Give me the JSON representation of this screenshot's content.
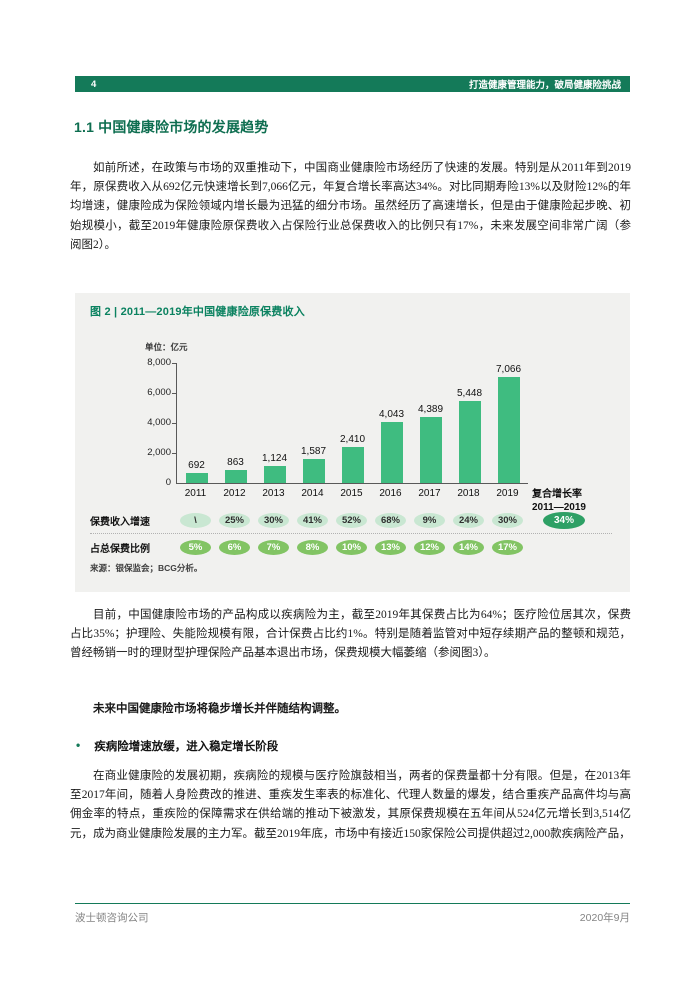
{
  "header": {
    "page_number": "4",
    "running_title": "打造健康管理能力，破局健康险挑战"
  },
  "section": {
    "title": "1.1 中国健康险市场的发展趋势"
  },
  "paragraphs": {
    "p1": "如前所述，在政策与市场的双重推动下，中国商业健康险市场经历了快速的发展。特别是从2011年到2019年，原保费收入从692亿元快速增长到7,066亿元，年复合增长率高达34%。对比同期寿险13%以及财险12%的年均增速，健康险成为保险领域内增长最为迅猛的细分市场。虽然经历了高速增长，但是由于健康险起步晚、初始规模小，截至2019年健康险原保费收入占保险行业总保费收入的比例只有17%，未来发展空间非常广阔（参阅图2）。",
    "p2": "目前，中国健康险市场的产品构成以疾病险为主，截至2019年其保费占比为64%；医疗险位居其次，保费占比35%；护理险、失能险规模有限，合计保费占比约1%。特别是随着监管对中短存续期产品的整顿和规范，曾经畅销一时的理财型护理保险产品基本退出市场，保费规模大幅萎缩（参阅图3）。",
    "bold_statement": "未来中国健康险市场将稳步增长并伴随结构调整。",
    "bullet_heading": "疾病险增速放缓，进入稳定增长阶段",
    "p3": "在商业健康险的发展初期，疾病险的规模与医疗险旗鼓相当，两者的保费量都十分有限。但是，在2013年至2017年间，随着人身险费改的推进、重疾发生率表的标准化、代理人数量的爆发，结合重疾产品高件均与高佣金率的特点，重疾险的保障需求在供给端的推动下被激发，其原保费规模在五年间从524亿元增长到3,514亿元，成为商业健康险发展的主力军。截至2019年底，市场中有接近150家保险公司提供超过2,000款疾病险产品，"
  },
  "figure": {
    "title": "图 2 | 2011—2019年中国健康险原保费收入",
    "unit_label": "单位：亿元",
    "cagr_label_line1": "复合增长率",
    "cagr_label_line2": "2011—2019",
    "growth_row_label": "保费收入增速",
    "share_row_label": "占总保费比例",
    "source": "来源：银保监会；BCG分析。"
  },
  "chart_data": {
    "type": "bar",
    "title": "图 2 | 2011—2019年中国健康险原保费收入",
    "unit": "亿元",
    "categories": [
      "2011",
      "2012",
      "2013",
      "2014",
      "2015",
      "2016",
      "2017",
      "2018",
      "2019"
    ],
    "values": [
      692,
      863,
      1124,
      1587,
      2410,
      4043,
      4389,
      5448,
      7066
    ],
    "value_labels": [
      "692",
      "863",
      "1,124",
      "1,587",
      "2,410",
      "4,043",
      "4,389",
      "5,448",
      "7,066"
    ],
    "ylim": [
      0,
      8000
    ],
    "yticks": [
      "8,000",
      "6,000",
      "4,000",
      "2,000",
      "0"
    ],
    "grid": false,
    "bar_color": "#3fbc80",
    "growth_rates": [
      "\\",
      "25%",
      "30%",
      "41%",
      "52%",
      "68%",
      "9%",
      "24%",
      "30%"
    ],
    "cagr": "34%",
    "share_of_total": [
      "5%",
      "6%",
      "7%",
      "8%",
      "10%",
      "13%",
      "12%",
      "14%",
      "17%"
    ]
  },
  "footer": {
    "company": "波士顿咨询公司",
    "date": "2020年9月"
  },
  "colors": {
    "brand_green": "#147a59",
    "title_green": "#0e6e50",
    "bar_green": "#3fbc80",
    "oval_light": "#c9e7d2",
    "oval_mid": "#82c464",
    "badge_green": "#2ea065",
    "fig_bg": "#f1f1ef"
  }
}
